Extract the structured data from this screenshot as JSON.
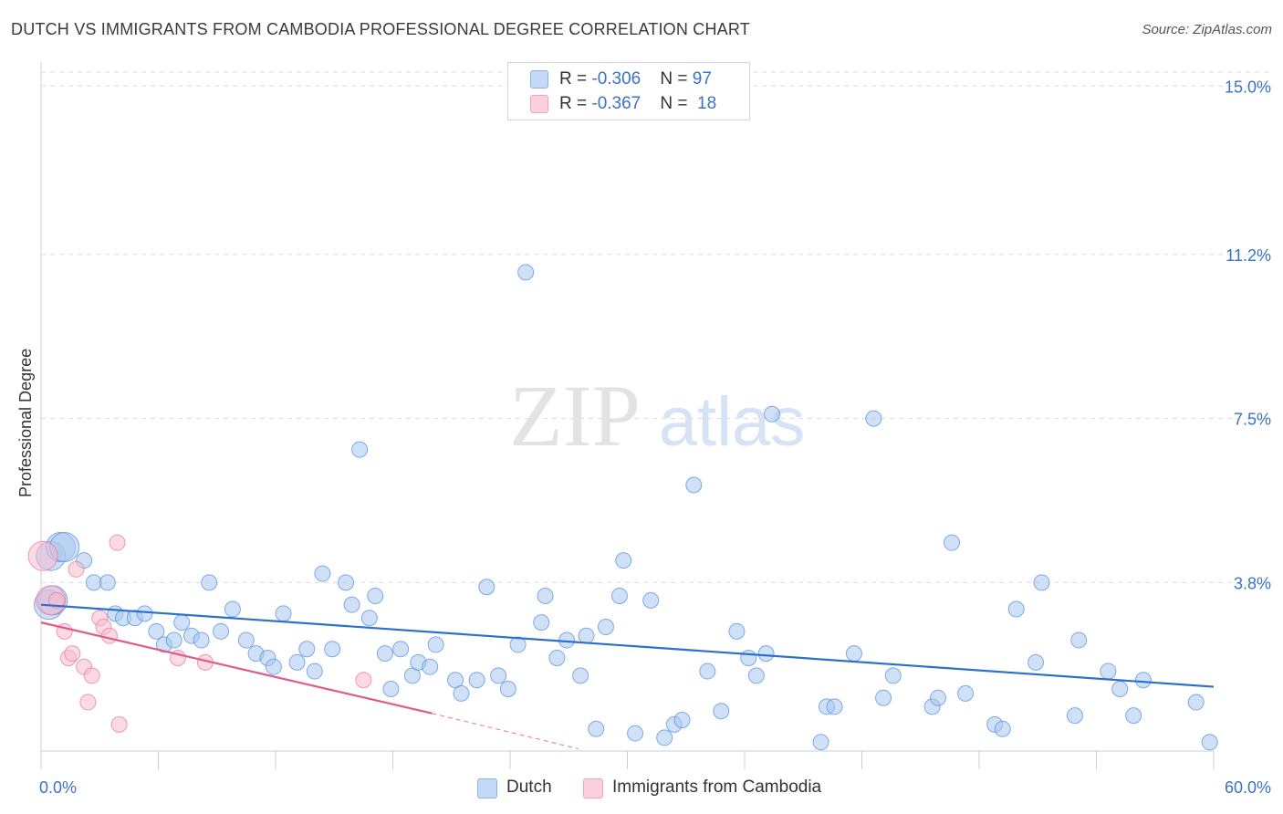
{
  "title": "DUTCH VS IMMIGRANTS FROM CAMBODIA PROFESSIONAL DEGREE CORRELATION CHART",
  "source": "Source: ZipAtlas.com",
  "watermark": {
    "zip": "ZIP",
    "atlas": "atlas"
  },
  "legend_top": {
    "rows": [
      {
        "r_label": "R = ",
        "r_value": "-0.306",
        "n_label": "N = ",
        "n_value": "97",
        "color": "#a9c8f0"
      },
      {
        "r_label": "R = ",
        "r_value": "-0.367",
        "n_label": "N = ",
        "n_value": "18",
        "color": "#f8bccd"
      }
    ]
  },
  "legend_bottom": [
    {
      "label": "Dutch",
      "color": "#a9c8f0"
    },
    {
      "label": "Immigrants from Cambodia",
      "color": "#f8bccd"
    }
  ],
  "chart_data": {
    "type": "scatter",
    "title": "DUTCH VS IMMIGRANTS FROM CAMBODIA PROFESSIONAL DEGREE CORRELATION CHART",
    "xlabel": "",
    "ylabel": "Professional Degree",
    "xlim": [
      0,
      60
    ],
    "ylim": [
      0,
      15.5
    ],
    "x_tick_labels": [
      "0.0%",
      "60.0%"
    ],
    "y_ticks": [
      {
        "value": 3.8,
        "label": "3.8%"
      },
      {
        "value": 7.5,
        "label": "7.5%"
      },
      {
        "value": 11.2,
        "label": "11.2%"
      },
      {
        "value": 15.0,
        "label": "15.0%"
      }
    ],
    "grid": "horizontal dashed",
    "legend": "bottom-center",
    "colors": {
      "dutch": "#5b92dc",
      "dutch_fill": "#a9c8f0",
      "cambodia": "#e87aa0",
      "cambodia_fill": "#f8bccd",
      "dutch_line": "#2c6fcc",
      "cambodia_line": "#e05a8c",
      "tick_label": "#3a72c8"
    },
    "series": [
      {
        "name": "Dutch",
        "trend": {
          "x": [
            0,
            60
          ],
          "y": [
            3.3,
            1.45
          ]
        },
        "points": [
          [
            0.5,
            4.4,
            1
          ],
          [
            1.0,
            4.6,
            1
          ],
          [
            1.2,
            4.6,
            1
          ],
          [
            0.4,
            3.3,
            1
          ],
          [
            0.6,
            3.4,
            1
          ],
          [
            2.2,
            4.3,
            0
          ],
          [
            2.7,
            3.8,
            0
          ],
          [
            3.4,
            3.8,
            0
          ],
          [
            3.8,
            3.1,
            0
          ],
          [
            4.2,
            3.0,
            0
          ],
          [
            4.8,
            3.0,
            0
          ],
          [
            5.3,
            3.1,
            0
          ],
          [
            5.9,
            2.7,
            0
          ],
          [
            6.3,
            2.4,
            0
          ],
          [
            6.8,
            2.5,
            0
          ],
          [
            7.2,
            2.9,
            0
          ],
          [
            7.7,
            2.6,
            0
          ],
          [
            8.2,
            2.5,
            0
          ],
          [
            8.6,
            3.8,
            0
          ],
          [
            9.2,
            2.7,
            0
          ],
          [
            9.8,
            3.2,
            0
          ],
          [
            10.5,
            2.5,
            0
          ],
          [
            11.0,
            2.2,
            0
          ],
          [
            11.6,
            2.1,
            0
          ],
          [
            11.9,
            1.9,
            0
          ],
          [
            12.4,
            3.1,
            0
          ],
          [
            13.1,
            2.0,
            0
          ],
          [
            13.6,
            2.3,
            0
          ],
          [
            14.0,
            1.8,
            0
          ],
          [
            14.4,
            4.0,
            0
          ],
          [
            14.9,
            2.3,
            0
          ],
          [
            15.6,
            3.8,
            0
          ],
          [
            15.9,
            3.3,
            0
          ],
          [
            16.3,
            6.8,
            0
          ],
          [
            16.8,
            3.0,
            0
          ],
          [
            17.1,
            3.5,
            0
          ],
          [
            17.6,
            2.2,
            0
          ],
          [
            17.9,
            1.4,
            0
          ],
          [
            18.4,
            2.3,
            0
          ],
          [
            19.0,
            1.7,
            0
          ],
          [
            19.3,
            2.0,
            0
          ],
          [
            19.9,
            1.9,
            0
          ],
          [
            20.2,
            2.4,
            0
          ],
          [
            21.2,
            1.6,
            0
          ],
          [
            21.5,
            1.3,
            0
          ],
          [
            22.3,
            1.6,
            0
          ],
          [
            22.8,
            3.7,
            0
          ],
          [
            23.4,
            1.7,
            0
          ],
          [
            23.9,
            1.4,
            0
          ],
          [
            24.4,
            2.4,
            0
          ],
          [
            24.8,
            10.8,
            0
          ],
          [
            25.6,
            2.9,
            0
          ],
          [
            25.8,
            3.5,
            0
          ],
          [
            26.4,
            2.1,
            0
          ],
          [
            26.9,
            2.5,
            0
          ],
          [
            27.6,
            1.7,
            0
          ],
          [
            27.9,
            2.6,
            0
          ],
          [
            28.4,
            0.5,
            0
          ],
          [
            28.9,
            2.8,
            0
          ],
          [
            29.6,
            3.5,
            0
          ],
          [
            29.8,
            4.3,
            0
          ],
          [
            30.4,
            0.4,
            0
          ],
          [
            31.2,
            3.4,
            0
          ],
          [
            31.9,
            0.3,
            0
          ],
          [
            32.4,
            0.6,
            0
          ],
          [
            32.8,
            0.7,
            0
          ],
          [
            33.4,
            6.0,
            0
          ],
          [
            34.1,
            1.8,
            0
          ],
          [
            34.8,
            0.9,
            0
          ],
          [
            35.6,
            2.7,
            0
          ],
          [
            36.2,
            2.1,
            0
          ],
          [
            36.6,
            1.7,
            0
          ],
          [
            37.1,
            2.2,
            0
          ],
          [
            37.4,
            7.6,
            0
          ],
          [
            39.9,
            0.2,
            0
          ],
          [
            40.2,
            1.0,
            0
          ],
          [
            40.6,
            1.0,
            0
          ],
          [
            41.6,
            2.2,
            0
          ],
          [
            42.6,
            7.5,
            0
          ],
          [
            43.1,
            1.2,
            0
          ],
          [
            43.6,
            1.7,
            0
          ],
          [
            45.6,
            1.0,
            0
          ],
          [
            45.9,
            1.2,
            0
          ],
          [
            46.6,
            4.7,
            0
          ],
          [
            47.3,
            1.3,
            0
          ],
          [
            48.8,
            0.6,
            0
          ],
          [
            49.2,
            0.5,
            0
          ],
          [
            49.9,
            3.2,
            0
          ],
          [
            50.9,
            2.0,
            0
          ],
          [
            51.2,
            3.8,
            0
          ],
          [
            52.9,
            0.8,
            0
          ],
          [
            53.1,
            2.5,
            0
          ],
          [
            54.6,
            1.8,
            0
          ],
          [
            55.2,
            1.4,
            0
          ],
          [
            55.9,
            0.8,
            0
          ],
          [
            56.4,
            1.6,
            0
          ],
          [
            59.1,
            1.1,
            0
          ],
          [
            59.8,
            0.2,
            0
          ]
        ]
      },
      {
        "name": "Immigrants from Cambodia",
        "trend": {
          "x": [
            0,
            20
          ],
          "y": [
            2.9,
            0.85
          ]
        },
        "trend_extension": {
          "x": [
            20,
            27.5
          ],
          "y": [
            0.85,
            0.05
          ]
        },
        "points": [
          [
            0.1,
            4.4,
            1
          ],
          [
            0.5,
            3.4,
            1
          ],
          [
            0.8,
            3.4,
            0
          ],
          [
            1.2,
            2.7,
            0
          ],
          [
            1.4,
            2.1,
            0
          ],
          [
            1.6,
            2.2,
            0
          ],
          [
            1.8,
            4.1,
            0
          ],
          [
            2.2,
            1.9,
            0
          ],
          [
            2.6,
            1.7,
            0
          ],
          [
            2.4,
            1.1,
            0
          ],
          [
            3.0,
            3.0,
            0
          ],
          [
            3.2,
            2.8,
            0
          ],
          [
            3.5,
            2.6,
            0
          ],
          [
            3.9,
            4.7,
            0
          ],
          [
            4.0,
            0.6,
            0
          ],
          [
            7.0,
            2.1,
            0
          ],
          [
            8.4,
            2.0,
            0
          ],
          [
            16.5,
            1.6,
            0
          ]
        ]
      }
    ]
  }
}
